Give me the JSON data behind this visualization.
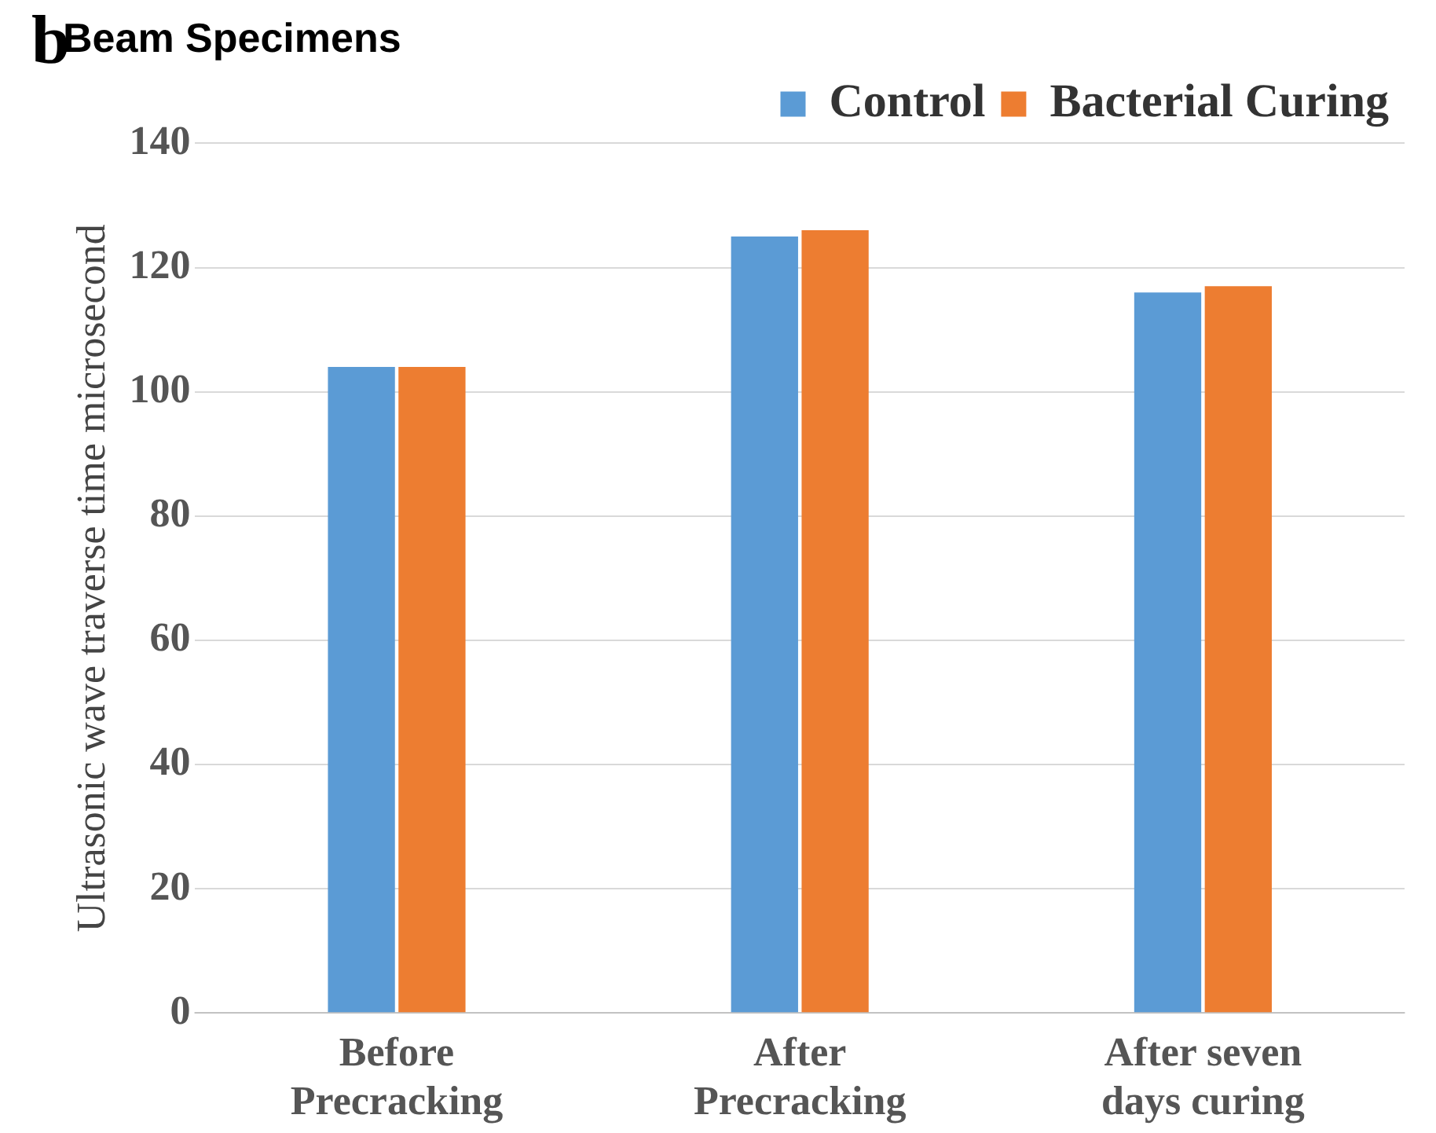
{
  "chart_data": {
    "type": "bar",
    "title": "Beam Specimens",
    "ylabel": "Ultrasonic wave traverse time microsecond",
    "annotations": [
      "b"
    ],
    "categories": [
      "Before\nPrecracking",
      "After\nPrecracking",
      "After seven\ndays curing"
    ],
    "series": [
      {
        "name": "Control",
        "color": "#5b9bd5",
        "values": [
          104,
          125,
          116
        ]
      },
      {
        "name": "Bacterial Curing",
        "color": "#ed7d31",
        "values": [
          104,
          126,
          117
        ]
      }
    ],
    "ylim": [
      0,
      140
    ],
    "yticks": [
      0,
      20,
      40,
      60,
      80,
      100,
      120,
      140
    ],
    "grid": "y",
    "legend": "top right"
  }
}
